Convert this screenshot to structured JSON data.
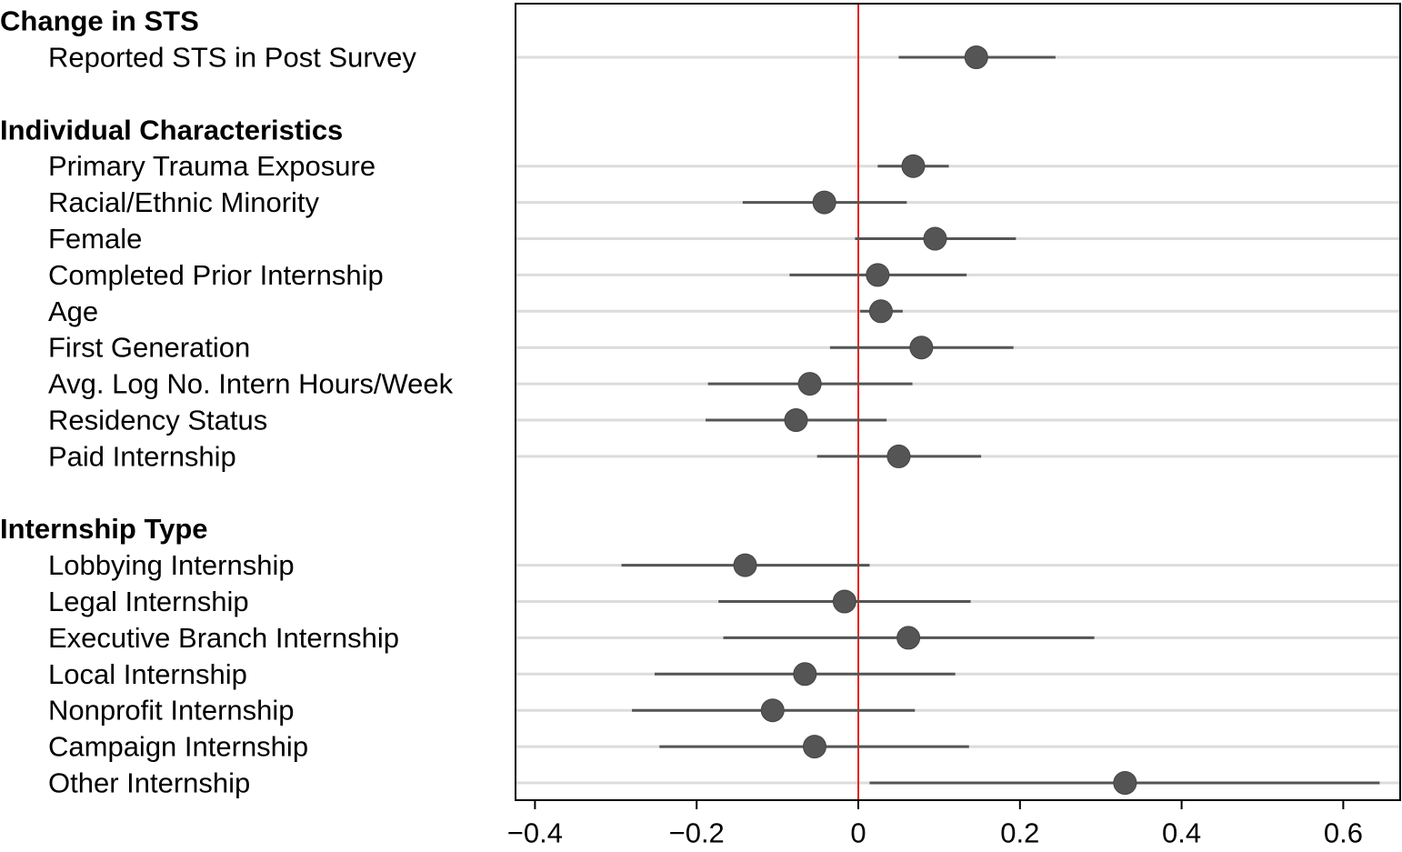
{
  "chart_data": {
    "type": "coefficient-plot",
    "title": "",
    "xlabel": "",
    "ylabel": "",
    "xlim": [
      -0.425,
      0.665
    ],
    "xticks": [
      -0.4,
      -0.2,
      0,
      0.2,
      0.4,
      0.6
    ],
    "xtick_labels": [
      "−0.4",
      "−0.2",
      "0",
      "0.2",
      "0.4",
      "0.6"
    ],
    "reference_line": {
      "x": 0,
      "color": "#e8201c"
    },
    "point_color": "#555555",
    "groups": [
      {
        "header": "Change in STS",
        "items": [
          {
            "label": "Reported STS in Post Survey",
            "estimate": 0.146,
            "lower": 0.05,
            "upper": 0.244
          }
        ]
      },
      {
        "header": "Individual Characteristics",
        "items": [
          {
            "label": "Primary Trauma Exposure",
            "estimate": 0.068,
            "lower": 0.024,
            "upper": 0.112
          },
          {
            "label": "Racial/Ethnic Minority",
            "estimate": -0.042,
            "lower": -0.143,
            "upper": 0.06
          },
          {
            "label": "Female",
            "estimate": 0.095,
            "lower": -0.004,
            "upper": 0.195
          },
          {
            "label": "Completed Prior Internship",
            "estimate": 0.024,
            "lower": -0.085,
            "upper": 0.134
          },
          {
            "label": "Age",
            "estimate": 0.028,
            "lower": 0.002,
            "upper": 0.055
          },
          {
            "label": "First Generation",
            "estimate": 0.078,
            "lower": -0.035,
            "upper": 0.192
          },
          {
            "label": "Avg. Log No. Intern Hours/Week",
            "estimate": -0.06,
            "lower": -0.186,
            "upper": 0.067
          },
          {
            "label": "Residency Status",
            "estimate": -0.077,
            "lower": -0.189,
            "upper": 0.035
          },
          {
            "label": "Paid Internship",
            "estimate": 0.05,
            "lower": -0.051,
            "upper": 0.152
          }
        ]
      },
      {
        "header": "Internship Type",
        "items": [
          {
            "label": "Lobbying Internship",
            "estimate": -0.14,
            "lower": -0.293,
            "upper": 0.014
          },
          {
            "label": "Legal Internship",
            "estimate": -0.017,
            "lower": -0.173,
            "upper": 0.139
          },
          {
            "label": "Executive Branch Internship",
            "estimate": 0.062,
            "lower": -0.167,
            "upper": 0.292
          },
          {
            "label": "Local Internship",
            "estimate": -0.066,
            "lower": -0.252,
            "upper": 0.12
          },
          {
            "label": "Nonprofit Internship",
            "estimate": -0.106,
            "lower": -0.28,
            "upper": 0.07
          },
          {
            "label": "Campaign Internship",
            "estimate": -0.054,
            "lower": -0.246,
            "upper": 0.137
          },
          {
            "label": "Other Internship",
            "estimate": 0.33,
            "lower": 0.014,
            "upper": 0.645
          }
        ]
      }
    ]
  }
}
